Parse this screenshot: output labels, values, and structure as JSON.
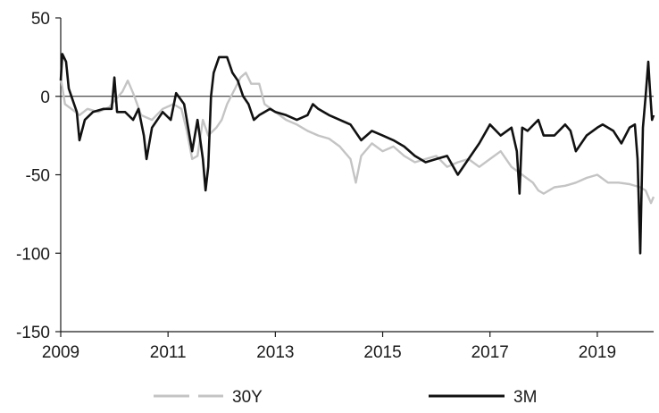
{
  "chart_data": {
    "type": "line",
    "title": "",
    "xlabel": "",
    "ylabel": "",
    "xlim": [
      2009.0,
      2020.05
    ],
    "ylim": [
      -150,
      50
    ],
    "x_ticks": [
      2009,
      2011,
      2013,
      2015,
      2017,
      2019
    ],
    "x_tick_labels": [
      "2009",
      "2011",
      "2013",
      "2015",
      "2017",
      "2019"
    ],
    "y_ticks": [
      50,
      0,
      -50,
      -100,
      -150
    ],
    "y_tick_labels": [
      "50",
      "0",
      "-50",
      "-100",
      "-150"
    ],
    "zero_line": true,
    "grid": false,
    "legend_position": "bottom",
    "series": [
      {
        "name": "30Y",
        "color": "#c4c4c4",
        "style": "dashed",
        "points": [
          [
            2009.0,
            12
          ],
          [
            2009.08,
            -5
          ],
          [
            2009.2,
            -8
          ],
          [
            2009.35,
            -12
          ],
          [
            2009.5,
            -8
          ],
          [
            2009.7,
            -10
          ],
          [
            2009.9,
            -7
          ],
          [
            2010.0,
            -3
          ],
          [
            2010.15,
            3
          ],
          [
            2010.25,
            10
          ],
          [
            2010.35,
            2
          ],
          [
            2010.5,
            -12
          ],
          [
            2010.7,
            -15
          ],
          [
            2010.9,
            -8
          ],
          [
            2011.1,
            -5
          ],
          [
            2011.25,
            -8
          ],
          [
            2011.35,
            -22
          ],
          [
            2011.45,
            -40
          ],
          [
            2011.55,
            -38
          ],
          [
            2011.65,
            -15
          ],
          [
            2011.75,
            -25
          ],
          [
            2011.9,
            -20
          ],
          [
            2012.0,
            -15
          ],
          [
            2012.1,
            -5
          ],
          [
            2012.25,
            5
          ],
          [
            2012.35,
            12
          ],
          [
            2012.45,
            15
          ],
          [
            2012.55,
            8
          ],
          [
            2012.7,
            8
          ],
          [
            2012.8,
            -5
          ],
          [
            2013.0,
            -10
          ],
          [
            2013.2,
            -15
          ],
          [
            2013.4,
            -18
          ],
          [
            2013.6,
            -22
          ],
          [
            2013.8,
            -25
          ],
          [
            2014.0,
            -27
          ],
          [
            2014.2,
            -32
          ],
          [
            2014.4,
            -40
          ],
          [
            2014.5,
            -55
          ],
          [
            2014.6,
            -38
          ],
          [
            2014.8,
            -30
          ],
          [
            2015.0,
            -35
          ],
          [
            2015.2,
            -32
          ],
          [
            2015.4,
            -38
          ],
          [
            2015.6,
            -42
          ],
          [
            2015.8,
            -40
          ],
          [
            2016.0,
            -38
          ],
          [
            2016.2,
            -45
          ],
          [
            2016.4,
            -42
          ],
          [
            2016.6,
            -40
          ],
          [
            2016.8,
            -45
          ],
          [
            2017.0,
            -40
          ],
          [
            2017.2,
            -35
          ],
          [
            2017.4,
            -45
          ],
          [
            2017.6,
            -50
          ],
          [
            2017.8,
            -55
          ],
          [
            2017.9,
            -60
          ],
          [
            2018.0,
            -62
          ],
          [
            2018.2,
            -58
          ],
          [
            2018.4,
            -57
          ],
          [
            2018.6,
            -55
          ],
          [
            2018.8,
            -52
          ],
          [
            2019.0,
            -50
          ],
          [
            2019.2,
            -55
          ],
          [
            2019.4,
            -55
          ],
          [
            2019.6,
            -56
          ],
          [
            2019.8,
            -58
          ],
          [
            2019.9,
            -60
          ],
          [
            2020.0,
            -68
          ],
          [
            2020.05,
            -64
          ]
        ]
      },
      {
        "name": "3M",
        "color": "#111111",
        "style": "solid",
        "points": [
          [
            2009.0,
            10
          ],
          [
            2009.03,
            27
          ],
          [
            2009.1,
            22
          ],
          [
            2009.15,
            5
          ],
          [
            2009.2,
            0
          ],
          [
            2009.3,
            -10
          ],
          [
            2009.35,
            -28
          ],
          [
            2009.45,
            -15
          ],
          [
            2009.6,
            -10
          ],
          [
            2009.8,
            -8
          ],
          [
            2009.95,
            -8
          ],
          [
            2010.0,
            12
          ],
          [
            2010.05,
            -10
          ],
          [
            2010.2,
            -10
          ],
          [
            2010.35,
            -15
          ],
          [
            2010.45,
            -8
          ],
          [
            2010.55,
            -25
          ],
          [
            2010.6,
            -40
          ],
          [
            2010.7,
            -20
          ],
          [
            2010.9,
            -10
          ],
          [
            2011.05,
            -15
          ],
          [
            2011.15,
            2
          ],
          [
            2011.3,
            -5
          ],
          [
            2011.4,
            -25
          ],
          [
            2011.45,
            -35
          ],
          [
            2011.55,
            -15
          ],
          [
            2011.65,
            -40
          ],
          [
            2011.7,
            -60
          ],
          [
            2011.75,
            -45
          ],
          [
            2011.8,
            0
          ],
          [
            2011.85,
            15
          ],
          [
            2011.95,
            25
          ],
          [
            2012.1,
            25
          ],
          [
            2012.2,
            15
          ],
          [
            2012.3,
            10
          ],
          [
            2012.4,
            0
          ],
          [
            2012.5,
            -5
          ],
          [
            2012.6,
            -15
          ],
          [
            2012.7,
            -12
          ],
          [
            2012.9,
            -8
          ],
          [
            2013.0,
            -10
          ],
          [
            2013.2,
            -12
          ],
          [
            2013.4,
            -15
          ],
          [
            2013.6,
            -12
          ],
          [
            2013.7,
            -5
          ],
          [
            2013.8,
            -8
          ],
          [
            2014.0,
            -12
          ],
          [
            2014.2,
            -15
          ],
          [
            2014.4,
            -18
          ],
          [
            2014.6,
            -28
          ],
          [
            2014.8,
            -22
          ],
          [
            2015.0,
            -25
          ],
          [
            2015.2,
            -28
          ],
          [
            2015.4,
            -32
          ],
          [
            2015.6,
            -38
          ],
          [
            2015.8,
            -42
          ],
          [
            2016.0,
            -40
          ],
          [
            2016.2,
            -38
          ],
          [
            2016.4,
            -50
          ],
          [
            2016.6,
            -40
          ],
          [
            2016.8,
            -30
          ],
          [
            2017.0,
            -18
          ],
          [
            2017.2,
            -25
          ],
          [
            2017.4,
            -20
          ],
          [
            2017.5,
            -35
          ],
          [
            2017.55,
            -62
          ],
          [
            2017.6,
            -20
          ],
          [
            2017.7,
            -22
          ],
          [
            2017.9,
            -15
          ],
          [
            2018.0,
            -25
          ],
          [
            2018.2,
            -25
          ],
          [
            2018.4,
            -18
          ],
          [
            2018.5,
            -22
          ],
          [
            2018.6,
            -35
          ],
          [
            2018.8,
            -25
          ],
          [
            2019.0,
            -20
          ],
          [
            2019.1,
            -18
          ],
          [
            2019.3,
            -22
          ],
          [
            2019.45,
            -30
          ],
          [
            2019.6,
            -20
          ],
          [
            2019.7,
            -18
          ],
          [
            2019.75,
            -40
          ],
          [
            2019.8,
            -100
          ],
          [
            2019.85,
            -20
          ],
          [
            2019.9,
            0
          ],
          [
            2019.95,
            22
          ],
          [
            2019.98,
            5
          ],
          [
            2020.02,
            -15
          ],
          [
            2020.05,
            -12
          ]
        ]
      }
    ]
  }
}
